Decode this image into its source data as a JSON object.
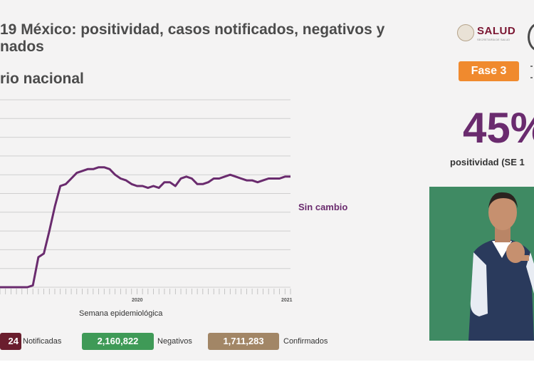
{
  "slide": {
    "title_line1": "19 México: positividad, casos notificados, negativos y",
    "title_line2": "nados",
    "subtitle": "rio nacional"
  },
  "logo": {
    "name": "SALUD",
    "sub": "SECRETARÍA DE SALUD"
  },
  "badge": {
    "label": "Fase 3",
    "color": "#f08a2e"
  },
  "kpi": {
    "value": "45%",
    "label": "positividad (SE 1"
  },
  "chart_data": {
    "type": "line",
    "title": "",
    "xlabel": "Semana epidemiológica",
    "ylabel": "",
    "ylim": [
      0,
      100
    ],
    "year_labels": [
      "2020",
      "2021"
    ],
    "annotation": "Sin cambio",
    "x": [
      1,
      2,
      3,
      4,
      5,
      6,
      7,
      8,
      9,
      10,
      11,
      12,
      13,
      14,
      15,
      16,
      17,
      18,
      19,
      20,
      21,
      22,
      23,
      24,
      25,
      26,
      27,
      28,
      29,
      30,
      31,
      32,
      33,
      34,
      35,
      36,
      37,
      38,
      39,
      40,
      41,
      42,
      43,
      44,
      45,
      46,
      47,
      48,
      49,
      50,
      51,
      52,
      53,
      54
    ],
    "series": [
      {
        "name": "Positividad",
        "color": "#6a2b6e",
        "values": [
          0,
          0,
          0,
          0,
          0,
          0,
          1,
          16,
          18,
          30,
          43,
          54,
          55,
          58,
          61,
          62,
          63,
          63,
          64,
          64,
          63,
          60,
          58,
          57,
          55,
          54,
          54,
          53,
          54,
          53,
          56,
          56,
          54,
          58,
          59,
          58,
          55,
          55,
          56,
          58,
          58,
          59,
          60,
          59,
          58,
          57,
          57,
          56,
          57,
          58,
          58,
          58,
          59,
          59
        ]
      }
    ],
    "values": [
      0,
      0,
      0,
      0,
      0,
      0,
      1,
      16,
      18,
      30,
      43,
      54,
      55,
      58,
      61,
      62,
      63,
      63,
      64,
      64,
      63,
      60,
      58,
      57,
      55,
      54,
      54,
      53,
      54,
      53,
      56,
      56,
      54,
      58,
      59,
      58,
      55,
      55,
      56,
      58,
      58,
      59,
      60,
      59,
      58,
      57,
      57,
      56,
      57,
      58,
      58,
      58,
      59,
      59
    ]
  },
  "legend": {
    "notificadas_value": "24",
    "notificadas_label": "Notificadas",
    "negativos_value": "2,160,822",
    "negativos_label": "Negativos",
    "confirmados_value": "1,711,283",
    "confirmados_label": "Confirmados"
  },
  "colors": {
    "notificadas": "#6a1e2e",
    "negativos": "#3f9a57",
    "confirmados": "#a28666",
    "accent": "#6a2b6e"
  }
}
